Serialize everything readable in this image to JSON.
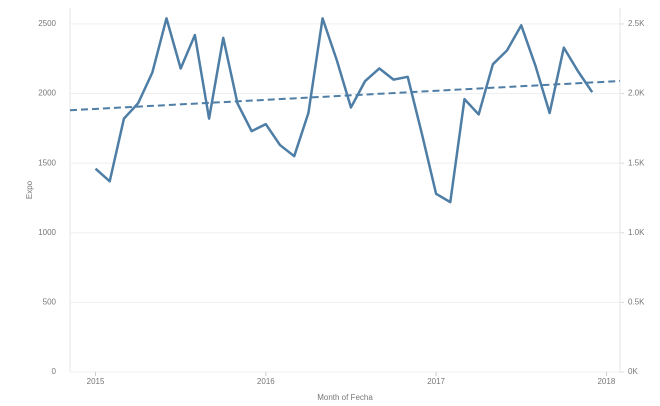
{
  "chart_data": {
    "type": "line",
    "x_label": "Month of Fecha",
    "y_label": "Expo",
    "x": [
      2015,
      2015.0833,
      2015.1667,
      2015.25,
      2015.3333,
      2015.4167,
      2015.5,
      2015.5833,
      2015.6667,
      2015.75,
      2015.8333,
      2015.9167,
      2016,
      2016.0833,
      2016.1667,
      2016.25,
      2016.3333,
      2016.4167,
      2016.5,
      2016.5833,
      2016.6667,
      2016.75,
      2016.8333,
      2016.9167,
      2017,
      2017.0833,
      2017.1667,
      2017.25,
      2017.3333,
      2017.4167,
      2017.5,
      2017.5833,
      2017.6667,
      2017.75,
      2017.8333,
      2017.9167
    ],
    "series": [
      {
        "name": "Expo",
        "color": "#4e7ea5",
        "values": [
          1460,
          1370,
          1820,
          1930,
          2150,
          2540,
          2180,
          2420,
          1820,
          2400,
          1930,
          1730,
          1780,
          1630,
          1550,
          1860,
          2540,
          2240,
          1900,
          2090,
          2180,
          2100,
          2120,
          1710,
          1280,
          1220,
          1960,
          1850,
          2210,
          2310,
          2490,
          2200,
          1860,
          2330,
          2160,
          2010
        ]
      }
    ],
    "trend_line": {
      "color": "#4e7ea5",
      "dashed": true,
      "x": [
        2014.85,
        2018.08
      ],
      "values": [
        1880,
        2090
      ]
    },
    "xlim": [
      2014.85,
      2018.08
    ],
    "xticks": [
      2015,
      2016,
      2017,
      2018
    ],
    "ylim": [
      0,
      2600
    ],
    "yticks": [
      0,
      500,
      1000,
      1500,
      2000,
      2500
    ],
    "y2lim": [
      0,
      2600
    ],
    "y2ticks": [
      {
        "value": 0,
        "label": "0K"
      },
      {
        "value": 500,
        "label": "0.5K"
      },
      {
        "value": 1000,
        "label": "1.0K"
      },
      {
        "value": 1500,
        "label": "1.5K"
      },
      {
        "value": 2000,
        "label": "2.0K"
      },
      {
        "value": 2500,
        "label": "2.5K"
      }
    ],
    "grid": true
  }
}
